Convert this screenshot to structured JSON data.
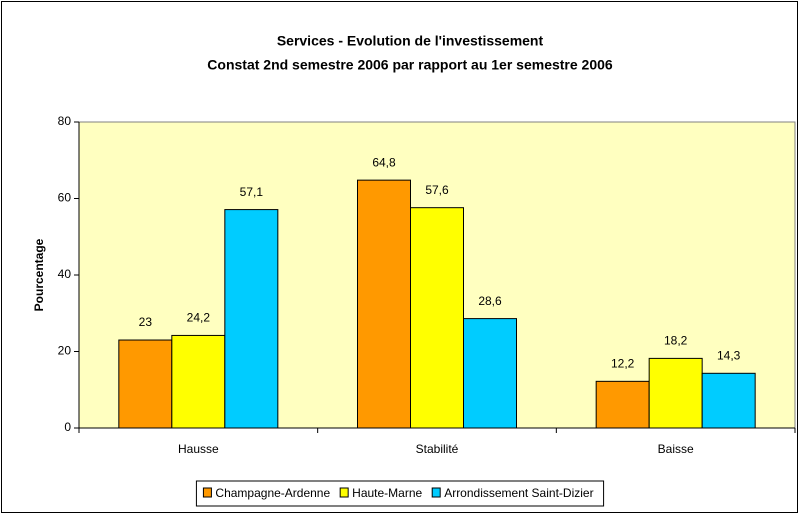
{
  "chart_data": {
    "type": "bar",
    "title": "Services - Evolution de l'investissement",
    "subtitle": "Constat 2nd semestre 2006 par rapport au 1er semestre 2006",
    "y_label": "Pourcentage",
    "categories": [
      "Hausse",
      "Stabilité",
      "Baisse"
    ],
    "series": [
      {
        "name": "Champagne-Ardenne",
        "color": "#ff9900",
        "values": [
          23,
          64.8,
          12.2
        ],
        "value_labels": [
          "23",
          "64,8",
          "12,2"
        ]
      },
      {
        "name": "Haute-Marne",
        "color": "#ffff00",
        "values": [
          24.2,
          57.6,
          18.2
        ],
        "value_labels": [
          "24,2",
          "57,6",
          "18,2"
        ]
      },
      {
        "name": "Arrondissement Saint-Dizier",
        "color": "#00ccff",
        "values": [
          57.1,
          28.6,
          14.3
        ],
        "value_labels": [
          "57,1",
          "28,6",
          "14,3"
        ]
      }
    ],
    "ylim": [
      0,
      80
    ],
    "yticks": [
      0,
      20,
      40,
      60,
      80
    ],
    "grid": false,
    "legend": "bottom"
  }
}
